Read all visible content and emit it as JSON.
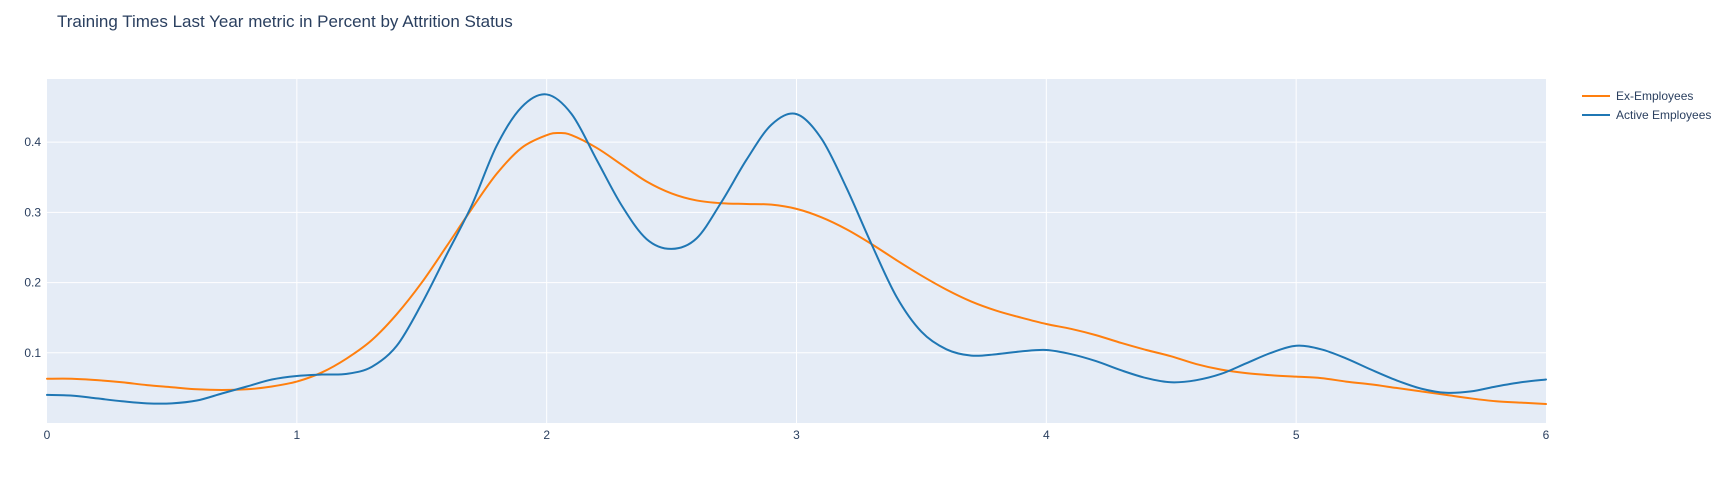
{
  "chart_data": {
    "type": "line",
    "title": "Training Times Last Year metric in Percent by Attrition Status",
    "xlim": [
      0,
      6
    ],
    "ylim": [
      0,
      0.49
    ],
    "x_ticks": [
      "0",
      "1",
      "2",
      "3",
      "4",
      "5",
      "6"
    ],
    "y_ticks": [
      "0.1",
      "0.2",
      "0.3",
      "0.4"
    ],
    "grid": true,
    "legend_position": "top-right",
    "background": "#e5ecf6",
    "series": [
      {
        "name": "Ex-Employees",
        "color": "#ff7f0e",
        "x": [
          0,
          0.1,
          0.2,
          0.3,
          0.4,
          0.5,
          0.6,
          0.7,
          0.8,
          0.9,
          1.0,
          1.1,
          1.2,
          1.3,
          1.4,
          1.5,
          1.6,
          1.7,
          1.8,
          1.9,
          2.0,
          2.05,
          2.1,
          2.2,
          2.3,
          2.4,
          2.5,
          2.6,
          2.7,
          2.8,
          2.9,
          3.0,
          3.1,
          3.2,
          3.3,
          3.4,
          3.5,
          3.6,
          3.7,
          3.8,
          3.9,
          4.0,
          4.1,
          4.2,
          4.3,
          4.4,
          4.5,
          4.6,
          4.7,
          4.8,
          4.9,
          5.0,
          5.1,
          5.2,
          5.3,
          5.4,
          5.5,
          5.6,
          5.7,
          5.8,
          5.9,
          6.0
        ],
        "y": [
          0.063,
          0.063,
          0.061,
          0.058,
          0.054,
          0.051,
          0.048,
          0.047,
          0.048,
          0.052,
          0.059,
          0.072,
          0.092,
          0.118,
          0.155,
          0.2,
          0.252,
          0.305,
          0.355,
          0.392,
          0.41,
          0.413,
          0.41,
          0.392,
          0.368,
          0.344,
          0.327,
          0.317,
          0.313,
          0.312,
          0.311,
          0.305,
          0.293,
          0.276,
          0.255,
          0.232,
          0.21,
          0.19,
          0.173,
          0.16,
          0.15,
          0.141,
          0.134,
          0.125,
          0.114,
          0.104,
          0.095,
          0.084,
          0.076,
          0.071,
          0.068,
          0.066,
          0.064,
          0.059,
          0.055,
          0.05,
          0.045,
          0.04,
          0.035,
          0.031,
          0.029,
          0.027
        ]
      },
      {
        "name": "Active Employees",
        "color": "#1f77b4",
        "x": [
          0,
          0.1,
          0.2,
          0.3,
          0.4,
          0.5,
          0.6,
          0.7,
          0.8,
          0.9,
          1.0,
          1.1,
          1.2,
          1.3,
          1.4,
          1.5,
          1.6,
          1.7,
          1.8,
          1.9,
          2.0,
          2.1,
          2.2,
          2.3,
          2.4,
          2.5,
          2.6,
          2.7,
          2.8,
          2.9,
          3.0,
          3.1,
          3.2,
          3.3,
          3.4,
          3.5,
          3.6,
          3.7,
          3.8,
          3.9,
          4.0,
          4.1,
          4.2,
          4.3,
          4.4,
          4.5,
          4.6,
          4.7,
          4.8,
          4.9,
          5.0,
          5.1,
          5.2,
          5.3,
          5.4,
          5.5,
          5.6,
          5.7,
          5.8,
          5.9,
          6.0
        ],
        "y": [
          0.04,
          0.039,
          0.035,
          0.031,
          0.028,
          0.028,
          0.032,
          0.042,
          0.052,
          0.062,
          0.067,
          0.069,
          0.07,
          0.08,
          0.11,
          0.17,
          0.24,
          0.31,
          0.395,
          0.45,
          0.468,
          0.44,
          0.375,
          0.31,
          0.262,
          0.248,
          0.263,
          0.315,
          0.375,
          0.425,
          0.44,
          0.405,
          0.335,
          0.255,
          0.18,
          0.13,
          0.105,
          0.096,
          0.098,
          0.102,
          0.104,
          0.098,
          0.088,
          0.075,
          0.064,
          0.058,
          0.061,
          0.07,
          0.085,
          0.1,
          0.11,
          0.105,
          0.092,
          0.076,
          0.061,
          0.049,
          0.043,
          0.045,
          0.052,
          0.058,
          0.062
        ]
      }
    ]
  }
}
